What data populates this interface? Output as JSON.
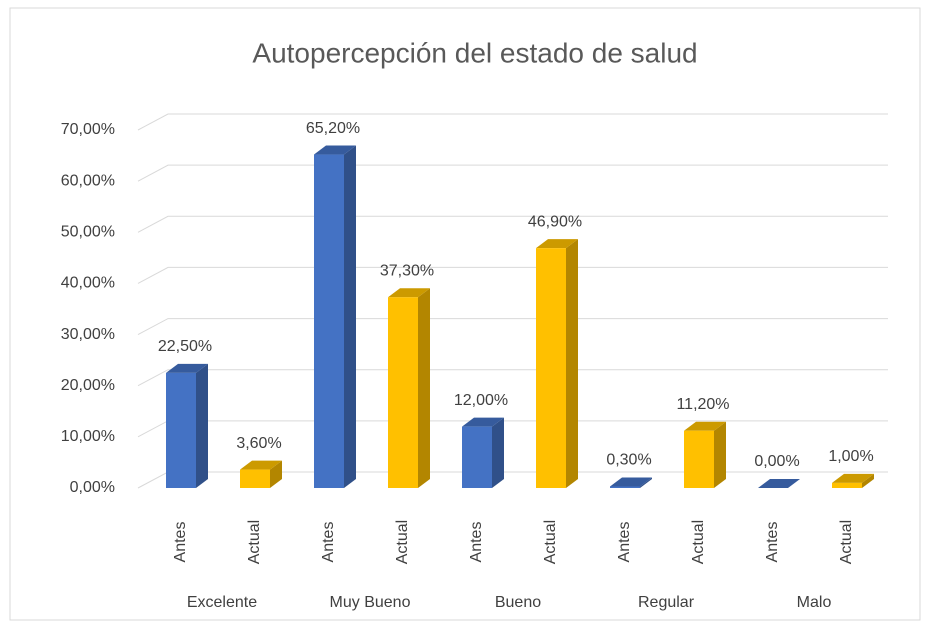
{
  "chart_data": {
    "type": "bar3d",
    "title": "Autopercepción del estado de salud",
    "categories": [
      "Excelente",
      "Muy Bueno",
      "Bueno",
      "Regular",
      "Malo"
    ],
    "series": [
      {
        "name": "Antes",
        "color": "#4472c4",
        "values": [
          22.5,
          65.2,
          12,
          0.3,
          0
        ],
        "value_labels": [
          "22,50%",
          "65,20%",
          "12,00%",
          "0,30%",
          "0,00%"
        ]
      },
      {
        "name": "Actual",
        "color": "#ffc000",
        "values": [
          3.6,
          37.3,
          46.9,
          11.2,
          1
        ],
        "value_labels": [
          "3,60%",
          "37,30%",
          "46,90%",
          "11,20%",
          "1,00%"
        ]
      }
    ],
    "ylim": [
      0,
      70
    ],
    "yticks": [
      {
        "value": 0,
        "label": "0,00%"
      },
      {
        "value": 10,
        "label": "10,00%"
      },
      {
        "value": 20,
        "label": "20,00%"
      },
      {
        "value": 30,
        "label": "30,00%"
      },
      {
        "value": 40,
        "label": "40,00%"
      },
      {
        "value": 50,
        "label": "50,00%"
      },
      {
        "value": 60,
        "label": "60,00%"
      },
      {
        "value": 70,
        "label": "70,00%"
      }
    ],
    "grid": true
  }
}
